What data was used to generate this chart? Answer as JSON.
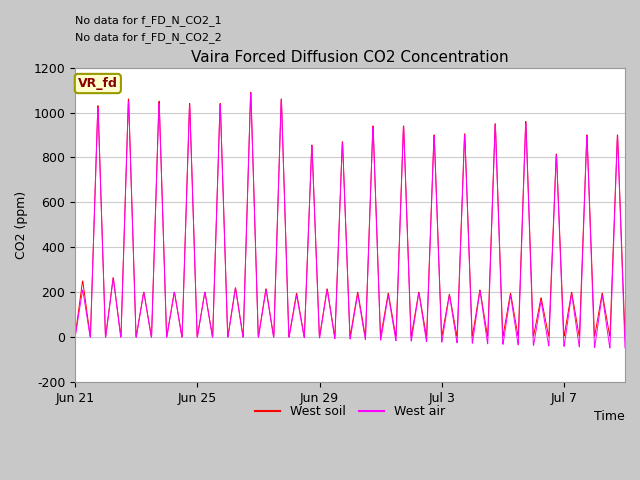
{
  "title": "Vaira Forced Diffusion CO2 Concentration",
  "xlabel": "Time",
  "ylabel": "CO2 (ppm)",
  "ylim": [
    -200,
    1200
  ],
  "yticks": [
    -200,
    0,
    200,
    400,
    600,
    800,
    1000,
    1200
  ],
  "xtick_labels": [
    "Jun 21",
    "Jun 25",
    "Jun 29",
    "Jul 3",
    "Jul 7"
  ],
  "xtick_positions": [
    0,
    4,
    8,
    12,
    16
  ],
  "no_data_text1": "No data for f_FD_N_CO2_1",
  "no_data_text2": "No data for f_FD_N_CO2_2",
  "vr_fd_label": "VR_fd",
  "legend_entries": [
    "West soil",
    "West air"
  ],
  "line_colors": [
    "#ff0000",
    "#ff00ff"
  ],
  "fig_bg": "#c8c8c8",
  "plot_bg": "#ffffff",
  "n_days": 18,
  "soil_cycle_peaks": [
    250,
    1030,
    265,
    1060,
    200,
    1050,
    200,
    1040,
    200,
    1040,
    220,
    1090,
    215,
    1060,
    195,
    855,
    215,
    870,
    200,
    940,
    195,
    940,
    200,
    900,
    190,
    905,
    210,
    950,
    195,
    960,
    175,
    815,
    200,
    900,
    195,
    900
  ],
  "air_cycle_peaks": [
    210,
    1020,
    260,
    1050,
    200,
    1040,
    200,
    1030,
    200,
    1035,
    215,
    1085,
    210,
    1055,
    185,
    850,
    210,
    865,
    190,
    935,
    185,
    935,
    195,
    895,
    185,
    900,
    205,
    945,
    185,
    950,
    160,
    810,
    190,
    895,
    185,
    890
  ],
  "trough_soil": 10,
  "trough_air": -50,
  "pts_per_half": 30
}
